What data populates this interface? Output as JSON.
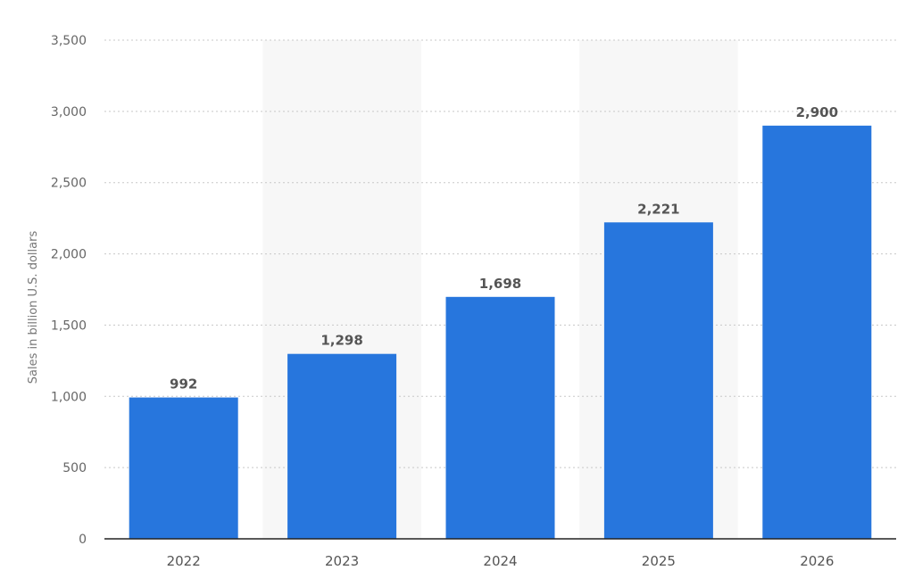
{
  "chart_data": {
    "type": "bar",
    "title": "",
    "xlabel": "",
    "ylabel": "Sales in billion U.S. dollars",
    "categories": [
      "2022",
      "2023",
      "2024",
      "2025",
      "2026"
    ],
    "values": [
      992,
      1298,
      1698,
      2221,
      2900
    ],
    "value_labels": [
      "992",
      "1,298",
      "1,698",
      "2,221",
      "2,900"
    ],
    "ylim": [
      0,
      3500
    ],
    "yticks": [
      0,
      500,
      1000,
      1500,
      2000,
      2500,
      3000,
      3500
    ],
    "ytick_labels": [
      "0",
      "500",
      "1,000",
      "1,500",
      "2,000",
      "2,500",
      "3,000",
      "3,500"
    ],
    "grid": true,
    "legend": "none",
    "colors": {
      "bar": "#2776dd",
      "grid": "#c8c8c8",
      "axis": "#222222",
      "band": "#f7f7f7"
    }
  }
}
